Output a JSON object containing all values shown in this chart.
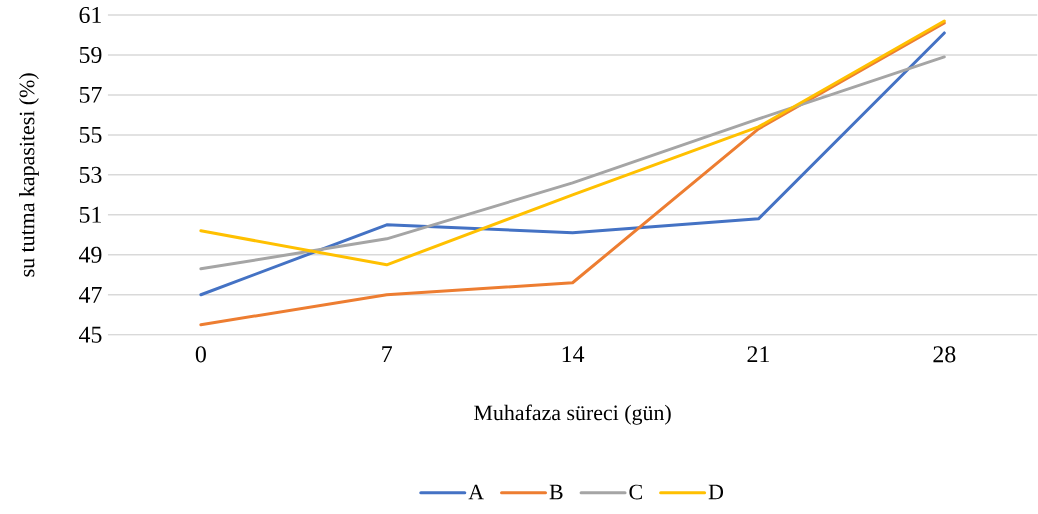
{
  "chart_data": {
    "type": "line",
    "xlabel": "Muhafaza süreci (gün)",
    "ylabel": "su tutma kapasitesi (%)",
    "categories": [
      "0",
      "7",
      "14",
      "21",
      "28"
    ],
    "series": [
      {
        "name": "A",
        "color": "#4472c4",
        "values": [
          47.0,
          50.5,
          50.1,
          50.8,
          60.1
        ]
      },
      {
        "name": "B",
        "color": "#ed7d31",
        "values": [
          45.5,
          47.0,
          47.6,
          55.3,
          60.6
        ]
      },
      {
        "name": "C",
        "color": "#a5a5a5",
        "values": [
          48.3,
          49.8,
          52.6,
          55.8,
          58.9
        ]
      },
      {
        "name": "D",
        "color": "#ffc000",
        "values": [
          50.2,
          48.5,
          52.0,
          55.4,
          60.7
        ]
      }
    ],
    "ylim": [
      45,
      61
    ],
    "yticks": [
      45,
      47,
      49,
      51,
      53,
      55,
      57,
      59,
      61
    ],
    "grid": "y",
    "legend": "bottom",
    "marker": "none",
    "line_style": "solid"
  }
}
